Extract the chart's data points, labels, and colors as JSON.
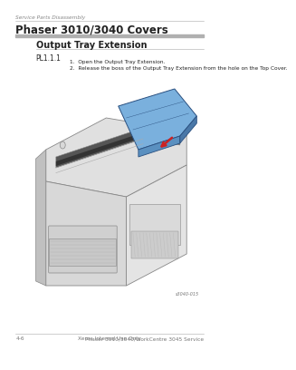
{
  "page_bg": "#ffffff",
  "header_breadcrumb": "Service Parts Disassembly",
  "title": "Phaser 3010/3040 Covers",
  "section": "Output Tray Extension",
  "part_number": "PL1.1.1",
  "steps": [
    "1.  Open the Output Tray Extension.",
    "2.  Release the boss of the Output Tray Extension from the hole on the Top Cover."
  ],
  "footer_left": "4-6",
  "footer_center": "Xerox Internal Use Only",
  "footer_right": "Phaser 3010/3040/WorkCentre 3045 Service",
  "image_code": "s3040-015",
  "title_bar_color": "#b0b0b0",
  "section_line_color": "#aaaaaa",
  "footer_line_color": "#aaaaaa",
  "breadcrumb_color": "#888888",
  "text_color": "#222222",
  "footer_text_color": "#777777",
  "printer_top_color": "#e0e0e0",
  "printer_front_color": "#d8d8d8",
  "printer_side_color": "#cccccc",
  "printer_right_color": "#e4e4e4",
  "printer_edge_color": "#888888",
  "tray_top_color": "#7ab0dd",
  "tray_face_color": "#5a90c0",
  "tray_side_color": "#4a78a8",
  "tray_edge_color": "#2a5080",
  "slot_color": "#555555",
  "slot_inner_color": "#333333",
  "arrow_color": "#cc2222",
  "paper_color": "#f5f5f5",
  "vent_color": "#cccccc",
  "detail_color": "#aaaaaa"
}
